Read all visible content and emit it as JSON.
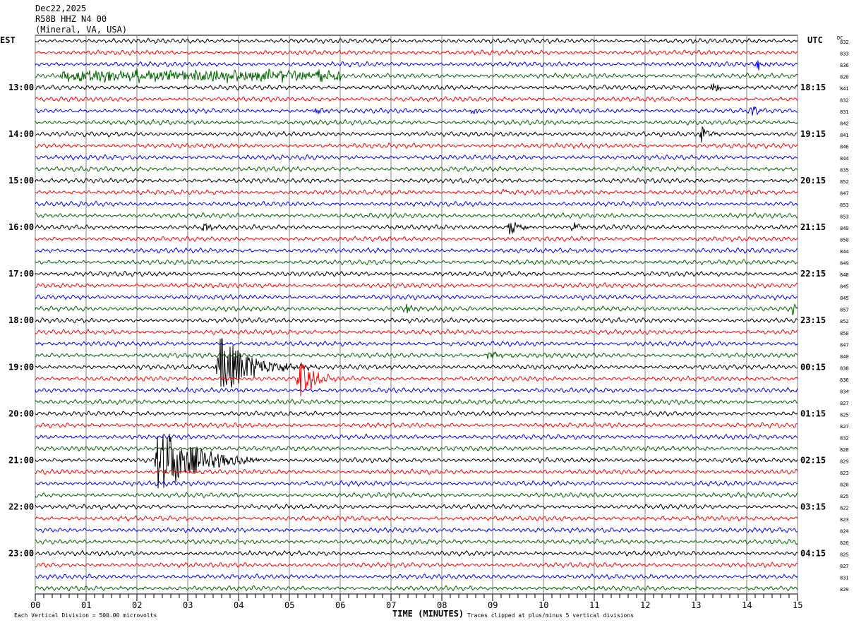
{
  "header": {
    "date": "Dec22,2025",
    "station": "R58B HHZ N4 00",
    "location": "(Mineral, VA, USA)"
  },
  "chart_data": {
    "type": "helicorder",
    "title": "R58B HHZ N4 00",
    "left_timezone": "EST",
    "right_timezone": "UTC",
    "dc_label": "DC",
    "xlabel": "TIME (MINUTES)",
    "xlim": [
      0,
      15
    ],
    "x_ticks": [
      "00",
      "01",
      "02",
      "03",
      "04",
      "05",
      "06",
      "07",
      "08",
      "09",
      "10",
      "11",
      "12",
      "13",
      "14",
      "15"
    ],
    "minutes_per_row": 15,
    "left_hour_labels": [
      "13:00",
      "14:00",
      "15:00",
      "16:00",
      "17:00",
      "18:00",
      "19:00",
      "20:00",
      "21:00",
      "22:00",
      "23:00"
    ],
    "right_hour_labels": [
      "18:15",
      "19:15",
      "20:15",
      "21:15",
      "22:15",
      "23:15",
      "00:15",
      "01:15",
      "02:15",
      "03:15",
      "04:15"
    ],
    "trace_colors": [
      "#000000",
      "#ff0000",
      "#0000ff",
      "#006400"
    ],
    "dc_values": [
      832,
      833,
      836,
      820,
      841,
      832,
      831,
      842,
      841,
      846,
      844,
      835,
      852,
      847,
      853,
      853,
      849,
      850,
      844,
      849,
      848,
      845,
      845,
      857,
      852,
      850,
      847,
      840,
      838,
      836,
      834,
      827,
      825,
      827,
      832,
      828,
      829,
      823,
      820,
      825,
      822,
      823,
      824,
      826,
      825,
      827,
      831,
      829
    ],
    "events": [
      {
        "row": 3,
        "minute": 0.5,
        "duration": 5.5,
        "amplitude": 0.4,
        "type": "noise"
      },
      {
        "row": 4,
        "minute": 13.3,
        "duration": 0.6,
        "amplitude": 0.5
      },
      {
        "row": 6,
        "minute": 5.5,
        "duration": 0.5,
        "amplitude": 0.3
      },
      {
        "row": 6,
        "minute": 8.6,
        "duration": 0.3,
        "amplitude": 0.5
      },
      {
        "row": 6,
        "minute": 14.1,
        "duration": 0.4,
        "amplitude": 0.5
      },
      {
        "row": 2,
        "minute": 14.2,
        "duration": 0.4,
        "amplitude": 0.5
      },
      {
        "row": 8,
        "minute": 13.1,
        "duration": 0.5,
        "amplitude": 0.9
      },
      {
        "row": 13,
        "minute": 9.2,
        "duration": 0.2,
        "amplitude": 0.5
      },
      {
        "row": 16,
        "minute": 3.3,
        "duration": 0.4,
        "amplitude": 0.4
      },
      {
        "row": 16,
        "minute": 9.3,
        "duration": 0.8,
        "amplitude": 0.7
      },
      {
        "row": 16,
        "minute": 10.6,
        "duration": 0.4,
        "amplitude": 0.4
      },
      {
        "row": 23,
        "minute": 7.3,
        "duration": 0.4,
        "amplitude": 0.4
      },
      {
        "row": 23,
        "minute": 14.9,
        "duration": 0.2,
        "amplitude": 0.7
      },
      {
        "row": 27,
        "minute": 8.9,
        "duration": 1.0,
        "amplitude": 0.3
      },
      {
        "row": 28,
        "minute": 3.6,
        "duration": 2.0,
        "amplitude": 2.8
      },
      {
        "row": 29,
        "minute": 5.2,
        "duration": 0.9,
        "amplitude": 1.6
      },
      {
        "row": 36,
        "minute": 2.4,
        "duration": 2.2,
        "amplitude": 3.2
      }
    ],
    "scale_note": "Each Vertical Division =  500.00 microvolts",
    "clip_note": "Traces clipped at plus/minus 5 vertical divisions"
  }
}
